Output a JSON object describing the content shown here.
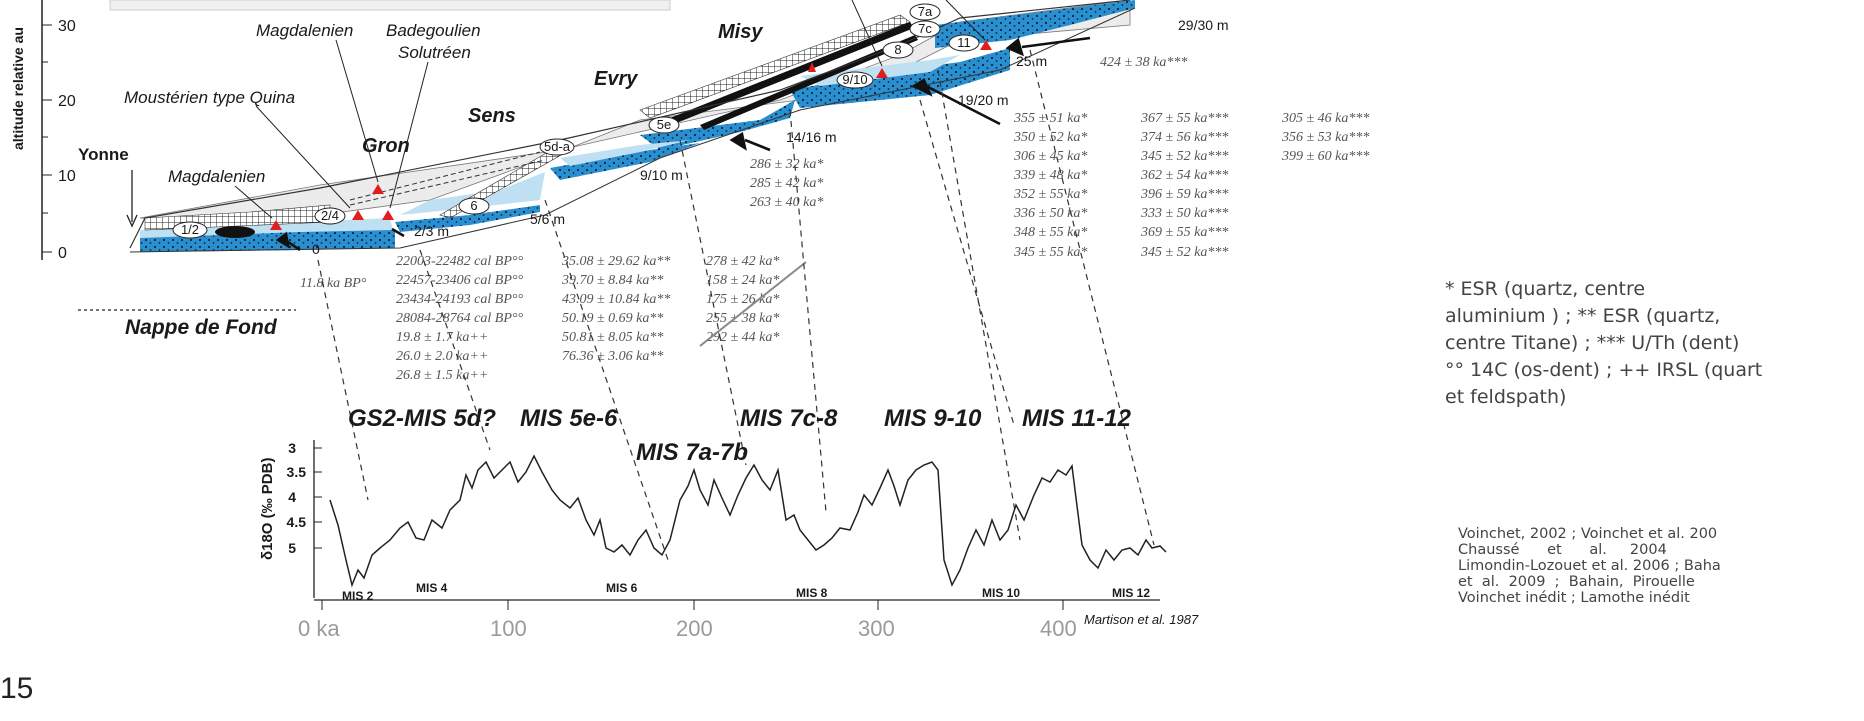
{
  "y_axis": {
    "label": "altitude relative au",
    "ticks": [
      "30",
      "20",
      "10",
      "0"
    ]
  },
  "river": {
    "name": "Yonne"
  },
  "nappe": "Nappe de Fond",
  "cultures": {
    "magdalenien_top": "Magdalenien",
    "badegoulien": "Badegoulien",
    "solutreen": "Solutréen",
    "mousterien": "Moustérien type Quina",
    "magdalenien_low": "Magdalenien"
  },
  "sites": {
    "gron": "Gron",
    "sens": "Sens",
    "evry": "Evry",
    "misy": "Misy"
  },
  "terrace_labels": [
    "1/2",
    "2/4",
    "6",
    "5d-a",
    "5e",
    "9/10",
    "8",
    "11",
    "7a",
    "7c"
  ],
  "altitudes": {
    "a29_30": "29/30 m",
    "a25": "25 m",
    "a19_20": "19/20 m",
    "a14_16": "14/16 m",
    "a9_10": "9/10 m",
    "a5_6": "5/6 m",
    "a2_3": "2/3 m",
    "zero": "0"
  },
  "ages": {
    "top": "424 ± 38 ka***",
    "gron_esr": "11.8 ka BP°",
    "col_c14": [
      "22003-22482 cal BP°°",
      "22457-23406 cal BP°°",
      "23434-24193 cal BP°°",
      "28084-28764 cal BP°°",
      "19.8 ± 1.7 ka++",
      "26.0 ± 2.0 ka++",
      "26.8 ± 1.5 ka++"
    ],
    "col_esr_ti": [
      "35.08 ± 29.62 ka**",
      "39.70 ± 8.84 ka**",
      "43.09 ± 10.84 ka**",
      "50.19 ± 0.69 ka**",
      "50.81 ± 8.05 ka**",
      "76.36 ± 3.06 ka**"
    ],
    "col_esr_low": [
      "278 ± 42 ka*",
      "158 ± 24 ka*",
      "175 ± 26 ka*",
      "255 ± 38 ka*",
      "292 ± 44 ka*"
    ],
    "col_esr_mid": [
      "286 ± 32 ka*",
      "285 ± 42 ka*",
      "263 ± 40 ka*"
    ],
    "col_a": [
      "355 ± 51 ka*",
      "350 ± 52 ka*",
      "306 ± 45 ka*",
      "339 ± 48 ka*",
      "352 ± 55 ka*",
      "336 ± 50 ka*",
      "348 ± 55 ka*",
      "345 ± 55 ka*"
    ],
    "col_b": [
      "367 ± 55 ka***",
      "374 ± 56 ka***",
      "345 ± 52 ka***",
      "362 ± 54 ka***",
      "396 ± 59 ka***",
      "333 ± 50 ka***",
      "369 ± 55 ka***",
      "345 ± 52 ka***"
    ],
    "col_c": [
      "305 ± 46 ka***",
      "356 ± 53 ka***",
      "399 ± 60 ka***"
    ]
  },
  "mis_periods": [
    "GS2-MIS 5d?",
    "MIS 5e-6",
    "MIS 7a-7b",
    "MIS 7c-8",
    "MIS 9-10",
    "MIS 11-12"
  ],
  "isotope_chart": {
    "ylabel": "δ18O (‰ PDB)",
    "yticks": [
      "3",
      "3.5",
      "4",
      "4.5",
      "5"
    ],
    "xticks": [
      "0 ka",
      "100",
      "200",
      "300",
      "400"
    ],
    "stages": [
      "MIS 2",
      "MIS 4",
      "MIS 6",
      "MIS 8",
      "MIS 10",
      "MIS 12"
    ],
    "source": "Martison et al. 1987"
  },
  "legend": [
    "* ESR (quartz, centre",
    "aluminium ) ; ** ESR (quartz,",
    "centre Titane) ; *** U/Th (dent)",
    "°° 14C (os-dent) ; ++ IRSL (quart",
    "et feldspath)"
  ],
  "references": [
    "Voinchet, 2002 ; Voinchet et al. 200",
    "Chaussé      et      al.     2004",
    "Limondin-Lozouet et al. 2006 ; Baha",
    "et  al.  2009  ;  Bahain,  Pirouelle",
    "Voinchet inédit ; Lamothe inédit"
  ],
  "page_number": "15",
  "colors": {
    "water": "#2a8fd0",
    "light": "#bfe0f2",
    "gravel": "#111111",
    "grey": "#e6e6e6",
    "marker": "#e01e1e"
  }
}
